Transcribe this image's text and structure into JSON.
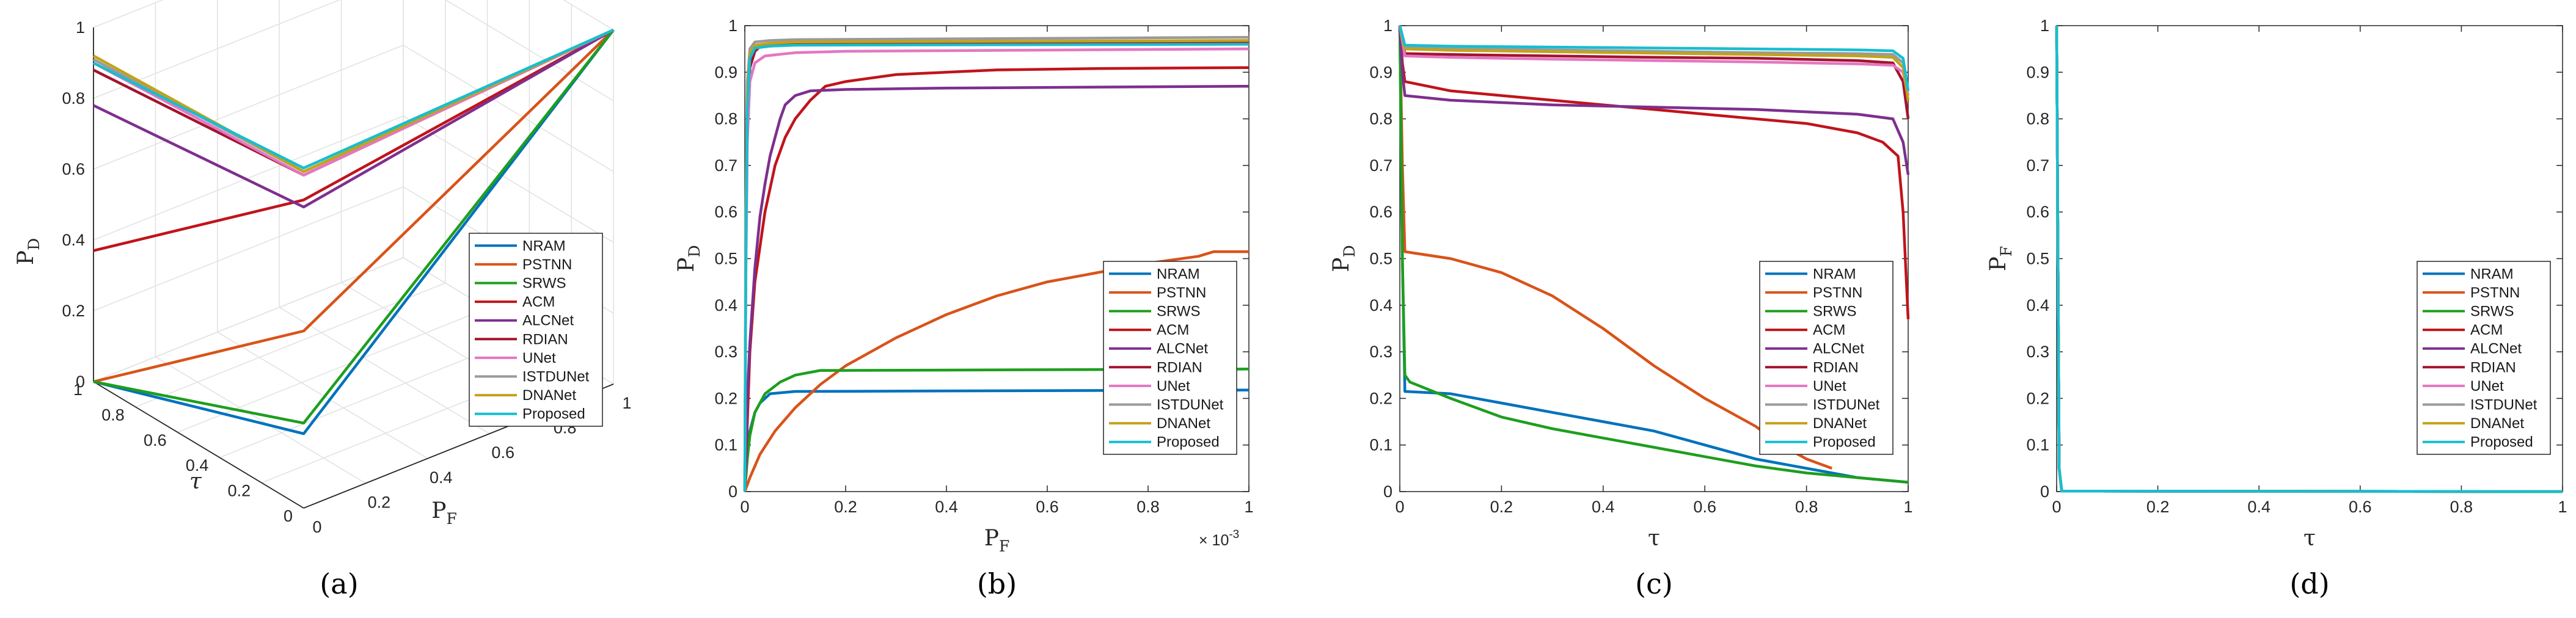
{
  "colors": {
    "NRAM": "#0072BD",
    "PSTNN": "#D95319",
    "SRWS": "#1E9E1E",
    "ACM": "#C0141B",
    "ALCNet": "#7E2F8E",
    "RDIAN": "#A2142F",
    "UNet": "#E377C2",
    "ISTDUNet": "#9A9A9A",
    "DNANet": "#C2A31A",
    "Proposed": "#17BECF"
  },
  "chart_data": [
    {
      "type": "line3d",
      "panel": "(a)",
      "title": "",
      "xlabel": "P",
      "xlabel_sub": "F",
      "ylabel": "τ",
      "zlabel": "P",
      "zlabel_sub": "D",
      "xlim": [
        0,
        1
      ],
      "ylim": [
        0,
        1
      ],
      "zlim": [
        0,
        1
      ],
      "xticks": [
        "0",
        "0.2",
        "0.4",
        "0.6",
        "0.8",
        "1"
      ],
      "yticks": [
        "0",
        "0.2",
        "0.4",
        "0.6",
        "0.8",
        "1"
      ],
      "zticks": [
        "0",
        "0.2",
        "0.4",
        "0.6",
        "0.8",
        "1"
      ],
      "legend": [
        "NRAM",
        "PSTNN",
        "SRWS",
        "ACM",
        "ALCNet",
        "RDIAN",
        "UNet",
        "ISTDUNet",
        "DNANet",
        "Proposed"
      ],
      "series": [
        {
          "name": "NRAM",
          "F": [
            0,
            0,
            1
          ],
          "T": [
            1,
            0,
            0
          ],
          "D": [
            0,
            0.21,
            1
          ]
        },
        {
          "name": "PSTNN",
          "F": [
            0,
            0,
            1
          ],
          "T": [
            1,
            0,
            0
          ],
          "D": [
            0,
            0.5,
            1
          ]
        },
        {
          "name": "SRWS",
          "F": [
            0,
            0,
            1
          ],
          "T": [
            1,
            0,
            0
          ],
          "D": [
            0,
            0.24,
            1
          ]
        },
        {
          "name": "ACM",
          "F": [
            0,
            0,
            1
          ],
          "T": [
            1,
            0,
            0
          ],
          "D": [
            0.37,
            0.87,
            1
          ]
        },
        {
          "name": "ALCNet",
          "F": [
            0,
            0,
            1
          ],
          "T": [
            1,
            0,
            0
          ],
          "D": [
            0.78,
            0.85,
            1
          ]
        },
        {
          "name": "RDIAN",
          "F": [
            0,
            0,
            1
          ],
          "T": [
            1,
            0,
            0
          ],
          "D": [
            0.88,
            0.94,
            1
          ]
        },
        {
          "name": "UNet",
          "F": [
            0,
            0,
            1
          ],
          "T": [
            1,
            0,
            0
          ],
          "D": [
            0.9,
            0.94,
            1
          ]
        },
        {
          "name": "ISTDUNet",
          "F": [
            0,
            0,
            1
          ],
          "T": [
            1,
            0,
            0
          ],
          "D": [
            0.91,
            0.95,
            1
          ]
        },
        {
          "name": "DNANet",
          "F": [
            0,
            0,
            1
          ],
          "T": [
            1,
            0,
            0
          ],
          "D": [
            0.92,
            0.95,
            1
          ]
        },
        {
          "name": "Proposed",
          "F": [
            0,
            0,
            1
          ],
          "T": [
            1,
            0,
            0
          ],
          "D": [
            0.9,
            0.96,
            1
          ]
        }
      ]
    },
    {
      "type": "line",
      "panel": "(b)",
      "xlabel": "P",
      "xlabel_sub": "F",
      "ylabel": "P",
      "ylabel_sub": "D",
      "xlim": [
        0,
        0.001
      ],
      "ylim": [
        0,
        1
      ],
      "x_multiplier": "× 10",
      "x_multiplier_exp": "-3",
      "xticks": [
        "0",
        "0.2",
        "0.4",
        "0.6",
        "0.8",
        "1"
      ],
      "yticks": [
        "0",
        "0.1",
        "0.2",
        "0.3",
        "0.4",
        "0.5",
        "0.6",
        "0.7",
        "0.8",
        "0.9",
        "1"
      ],
      "legend": [
        "NRAM",
        "PSTNN",
        "SRWS",
        "ACM",
        "ALCNet",
        "RDIAN",
        "UNet",
        "ISTDUNet",
        "DNANet",
        "Proposed"
      ],
      "series": [
        {
          "name": "NRAM",
          "x": [
            0,
            5e-06,
            1e-05,
            2e-05,
            3e-05,
            5e-05,
            0.0001,
            0.001
          ],
          "y": [
            0,
            0.08,
            0.13,
            0.17,
            0.19,
            0.21,
            0.215,
            0.218
          ]
        },
        {
          "name": "PSTNN",
          "x": [
            0,
            1e-05,
            3e-05,
            6e-05,
            0.0001,
            0.00015,
            0.0002,
            0.0003,
            0.0004,
            0.0005,
            0.0006,
            0.0007,
            0.0008,
            0.0009,
            0.00093,
            0.001
          ],
          "y": [
            0,
            0.03,
            0.08,
            0.13,
            0.18,
            0.23,
            0.27,
            0.33,
            0.38,
            0.42,
            0.45,
            0.47,
            0.49,
            0.505,
            0.515,
            0.515
          ]
        },
        {
          "name": "SRWS",
          "x": [
            0,
            5e-06,
            1e-05,
            2e-05,
            4e-05,
            7e-05,
            0.0001,
            0.00015,
            0.0002,
            0.001
          ],
          "y": [
            0,
            0.07,
            0.12,
            0.17,
            0.21,
            0.235,
            0.25,
            0.26,
            0.26,
            0.263
          ]
        },
        {
          "name": "ACM",
          "x": [
            0,
            1e-05,
            2e-05,
            4e-05,
            6e-05,
            8e-05,
            0.0001,
            0.00013,
            0.00016,
            0.0002,
            0.0003,
            0.0004,
            0.0005,
            0.0007,
            0.001
          ],
          "y": [
            0,
            0.3,
            0.45,
            0.6,
            0.7,
            0.76,
            0.8,
            0.84,
            0.87,
            0.88,
            0.895,
            0.9,
            0.905,
            0.908,
            0.91
          ]
        },
        {
          "name": "ALCNet",
          "x": [
            0,
            5e-06,
            1e-05,
            2e-05,
            3e-05,
            4e-05,
            5e-05,
            6e-05,
            7e-05,
            8e-05,
            0.0001,
            0.00013,
            0.0002,
            0.0004,
            0.001
          ],
          "y": [
            0,
            0.2,
            0.32,
            0.48,
            0.59,
            0.66,
            0.72,
            0.76,
            0.8,
            0.83,
            0.85,
            0.86,
            0.863,
            0.866,
            0.87
          ]
        },
        {
          "name": "RDIAN",
          "x": [
            0,
            2e-06,
            5e-06,
            1e-05,
            2e-05,
            3e-05,
            5e-05,
            0.0001,
            0.001
          ],
          "y": [
            0,
            0.5,
            0.8,
            0.91,
            0.945,
            0.955,
            0.96,
            0.963,
            0.965
          ]
        },
        {
          "name": "UNet",
          "x": [
            0,
            2e-06,
            5e-06,
            1e-05,
            2e-05,
            4e-05,
            0.0001,
            0.0002,
            0.001
          ],
          "y": [
            0,
            0.45,
            0.75,
            0.88,
            0.92,
            0.935,
            0.942,
            0.945,
            0.95
          ]
        },
        {
          "name": "ISTDUNet",
          "x": [
            0,
            2e-06,
            5e-06,
            1e-05,
            2e-05,
            5e-05,
            0.0001,
            0.001
          ],
          "y": [
            0,
            0.6,
            0.88,
            0.95,
            0.965,
            0.968,
            0.97,
            0.975
          ]
        },
        {
          "name": "DNANet",
          "x": [
            0,
            2e-06,
            5e-06,
            1e-05,
            2e-05,
            5e-05,
            0.0001,
            0.001
          ],
          "y": [
            0,
            0.55,
            0.85,
            0.94,
            0.958,
            0.962,
            0.965,
            0.968
          ]
        },
        {
          "name": "Proposed",
          "x": [
            0,
            2e-06,
            5e-06,
            1e-05,
            2e-05,
            5e-05,
            0.0001,
            0.001
          ],
          "y": [
            0,
            0.5,
            0.82,
            0.93,
            0.952,
            0.956,
            0.958,
            0.96
          ]
        }
      ]
    },
    {
      "type": "line",
      "panel": "(c)",
      "xlabel": "τ",
      "ylabel": "P",
      "ylabel_sub": "D",
      "xlim": [
        0,
        1
      ],
      "ylim": [
        0,
        1
      ],
      "xticks": [
        "0",
        "0.2",
        "0.4",
        "0.6",
        "0.8",
        "1"
      ],
      "yticks": [
        "0",
        "0.1",
        "0.2",
        "0.3",
        "0.4",
        "0.5",
        "0.6",
        "0.7",
        "0.8",
        "0.9",
        "1"
      ],
      "legend": [
        "NRAM",
        "PSTNN",
        "SRWS",
        "ACM",
        "ALCNet",
        "RDIAN",
        "UNet",
        "ISTDUNet",
        "DNANet",
        "Proposed"
      ],
      "series": [
        {
          "name": "NRAM",
          "x": [
            0,
            0.005,
            0.01,
            0.1,
            0.2,
            0.3,
            0.4,
            0.5,
            0.6,
            0.7,
            0.8,
            0.9,
            1
          ],
          "y": [
            1,
            0.5,
            0.215,
            0.21,
            0.19,
            0.17,
            0.15,
            0.13,
            0.1,
            0.07,
            0.05,
            0.03,
            0.02
          ]
        },
        {
          "name": "PSTNN",
          "x": [
            0,
            0.005,
            0.01,
            0.1,
            0.2,
            0.3,
            0.4,
            0.5,
            0.6,
            0.7,
            0.75,
            0.8,
            0.85
          ],
          "y": [
            1,
            0.7,
            0.515,
            0.5,
            0.47,
            0.42,
            0.35,
            0.27,
            0.2,
            0.14,
            0.1,
            0.07,
            0.05
          ]
        },
        {
          "name": "SRWS",
          "x": [
            0,
            0.005,
            0.01,
            0.02,
            0.1,
            0.2,
            0.3,
            0.4,
            0.5,
            0.6,
            0.7,
            0.8,
            0.9,
            1
          ],
          "y": [
            1,
            0.5,
            0.25,
            0.235,
            0.2,
            0.16,
            0.135,
            0.115,
            0.095,
            0.075,
            0.055,
            0.04,
            0.03,
            0.02
          ]
        },
        {
          "name": "ACM",
          "x": [
            0,
            0.005,
            0.01,
            0.1,
            0.2,
            0.3,
            0.4,
            0.5,
            0.6,
            0.7,
            0.8,
            0.9,
            0.95,
            0.98,
            0.99,
            1
          ],
          "y": [
            1,
            0.92,
            0.88,
            0.86,
            0.85,
            0.84,
            0.83,
            0.82,
            0.81,
            0.8,
            0.79,
            0.77,
            0.75,
            0.72,
            0.6,
            0.37
          ]
        },
        {
          "name": "ALCNet",
          "x": [
            0,
            0.005,
            0.01,
            0.1,
            0.3,
            0.5,
            0.7,
            0.9,
            0.97,
            0.99,
            1
          ],
          "y": [
            1,
            0.9,
            0.85,
            0.84,
            0.83,
            0.825,
            0.82,
            0.81,
            0.8,
            0.75,
            0.68
          ]
        },
        {
          "name": "RDIAN",
          "x": [
            0,
            0.01,
            0.1,
            0.3,
            0.5,
            0.7,
            0.9,
            0.97,
            0.99,
            1
          ],
          "y": [
            1,
            0.94,
            0.938,
            0.935,
            0.932,
            0.93,
            0.925,
            0.92,
            0.88,
            0.8
          ]
        },
        {
          "name": "UNet",
          "x": [
            0,
            0.01,
            0.1,
            0.3,
            0.5,
            0.7,
            0.9,
            0.97,
            0.99,
            1
          ],
          "y": [
            1,
            0.935,
            0.932,
            0.928,
            0.925,
            0.922,
            0.918,
            0.915,
            0.9,
            0.85
          ]
        },
        {
          "name": "ISTDUNet",
          "x": [
            0,
            0.01,
            0.1,
            0.3,
            0.5,
            0.7,
            0.9,
            0.97,
            0.99,
            1
          ],
          "y": [
            1,
            0.955,
            0.952,
            0.948,
            0.945,
            0.942,
            0.94,
            0.938,
            0.92,
            0.86
          ]
        },
        {
          "name": "DNANet",
          "x": [
            0,
            0.01,
            0.1,
            0.3,
            0.5,
            0.7,
            0.9,
            0.97,
            0.99,
            1
          ],
          "y": [
            1,
            0.95,
            0.947,
            0.944,
            0.941,
            0.938,
            0.935,
            0.932,
            0.91,
            0.84
          ]
        },
        {
          "name": "Proposed",
          "x": [
            0,
            0.01,
            0.1,
            0.3,
            0.5,
            0.7,
            0.9,
            0.97,
            0.99,
            1
          ],
          "y": [
            1,
            0.958,
            0.956,
            0.954,
            0.952,
            0.95,
            0.948,
            0.946,
            0.93,
            0.86
          ]
        }
      ]
    },
    {
      "type": "line",
      "panel": "(d)",
      "xlabel": "τ",
      "ylabel": "P",
      "ylabel_sub": "F",
      "xlim": [
        0,
        1
      ],
      "ylim": [
        0,
        1
      ],
      "xticks": [
        "0",
        "0.2",
        "0.4",
        "0.6",
        "0.8",
        "1"
      ],
      "yticks": [
        "0",
        "0.1",
        "0.2",
        "0.3",
        "0.4",
        "0.5",
        "0.6",
        "0.7",
        "0.8",
        "0.9",
        "1"
      ],
      "legend": [
        "NRAM",
        "PSTNN",
        "SRWS",
        "ACM",
        "ALCNet",
        "RDIAN",
        "UNet",
        "ISTDUNet",
        "DNANet",
        "Proposed"
      ],
      "series": [
        {
          "name": "NRAM",
          "x": [
            0,
            0.005,
            0.01,
            1
          ],
          "y": [
            1,
            0.05,
            0.001,
            0
          ]
        },
        {
          "name": "PSTNN",
          "x": [
            0,
            0.005,
            0.01,
            1
          ],
          "y": [
            1,
            0.05,
            0.001,
            0
          ]
        },
        {
          "name": "SRWS",
          "x": [
            0,
            0.005,
            0.01,
            1
          ],
          "y": [
            1,
            0.05,
            0.001,
            0
          ]
        },
        {
          "name": "ACM",
          "x": [
            0,
            0.005,
            0.01,
            1
          ],
          "y": [
            1,
            0.05,
            0.001,
            0
          ]
        },
        {
          "name": "ALCNet",
          "x": [
            0,
            0.005,
            0.01,
            1
          ],
          "y": [
            1,
            0.05,
            0.001,
            0
          ]
        },
        {
          "name": "RDIAN",
          "x": [
            0,
            0.005,
            0.01,
            1
          ],
          "y": [
            1,
            0.05,
            0.001,
            0
          ]
        },
        {
          "name": "UNet",
          "x": [
            0,
            0.005,
            0.01,
            1
          ],
          "y": [
            1,
            0.05,
            0.001,
            0
          ]
        },
        {
          "name": "ISTDUNet",
          "x": [
            0,
            0.005,
            0.01,
            1
          ],
          "y": [
            1,
            0.05,
            0.001,
            0
          ]
        },
        {
          "name": "DNANet",
          "x": [
            0,
            0.005,
            0.01,
            1
          ],
          "y": [
            1,
            0.05,
            0.001,
            0
          ]
        },
        {
          "name": "Proposed",
          "x": [
            0,
            0.005,
            0.01,
            1
          ],
          "y": [
            1,
            0.05,
            0.001,
            0
          ]
        }
      ]
    }
  ]
}
